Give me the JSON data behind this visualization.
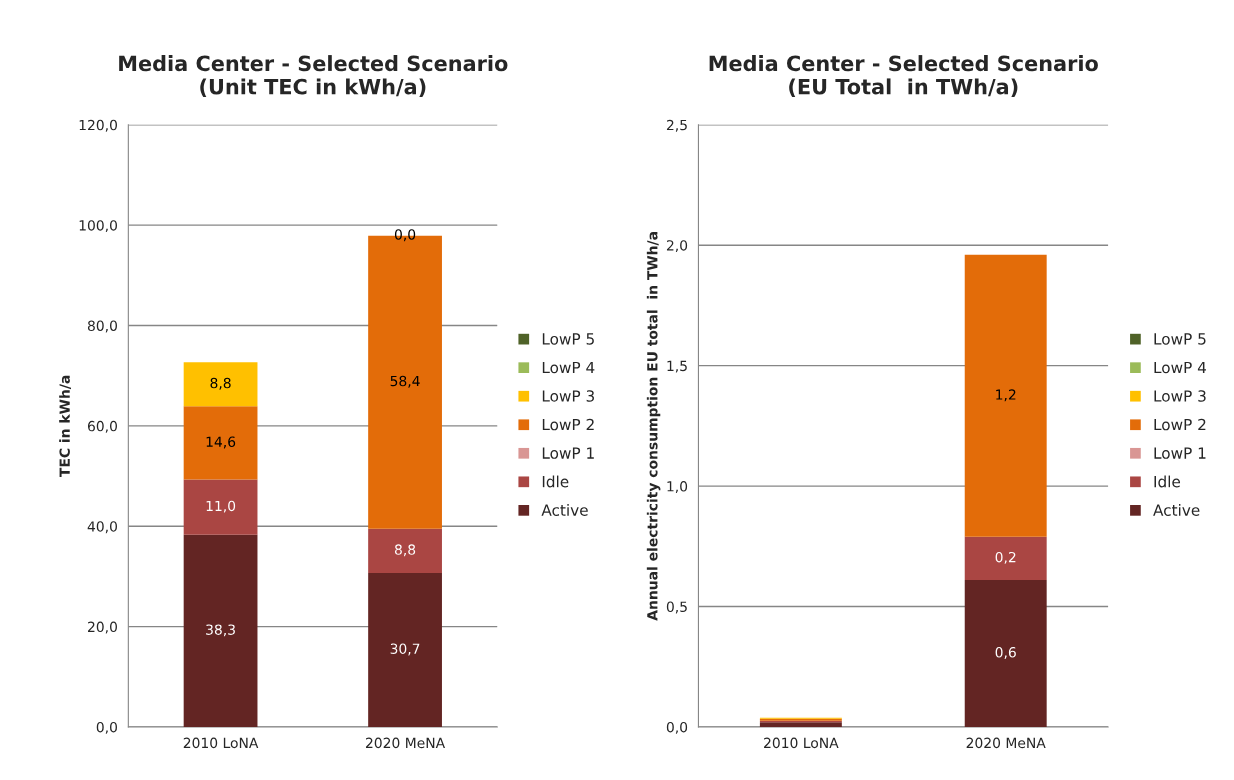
{
  "chart_data": [
    {
      "type": "bar",
      "title": "Media Center - Selected Scenario\n(Unit TEC in kWh/a)",
      "ylabel": "TEC in kWh/a",
      "categories": [
        "2010 LoNA",
        "2020 MeNA"
      ],
      "stacked": true,
      "ylim": [
        0,
        120
      ],
      "yticks": [
        {
          "value": 0,
          "label": "0,0"
        },
        {
          "value": 20,
          "label": "20,0"
        },
        {
          "value": 40,
          "label": "40,0"
        },
        {
          "value": 60,
          "label": "60,0"
        },
        {
          "value": 80,
          "label": "80,0"
        },
        {
          "value": 100,
          "label": "100,0"
        },
        {
          "value": 120,
          "label": "120,0"
        }
      ],
      "grid": "y",
      "legend": "right",
      "series": [
        {
          "name": "Active",
          "color": "#632523",
          "values": [
            38.3,
            30.7
          ],
          "value_labels": [
            "38,3",
            "30,7"
          ]
        },
        {
          "name": "Idle",
          "color": "#aa4643",
          "values": [
            11.0,
            8.8
          ],
          "value_labels": [
            "11,0",
            "8,8"
          ]
        },
        {
          "name": "LowP 1",
          "color": "#d99694",
          "values": [
            0,
            0
          ],
          "value_labels": [
            null,
            null
          ]
        },
        {
          "name": "LowP 2",
          "color": "#e36c09",
          "values": [
            14.6,
            58.4
          ],
          "value_labels": [
            "14,6",
            "58,4"
          ]
        },
        {
          "name": "LowP 3",
          "color": "#ffc000",
          "values": [
            8.8,
            0.0
          ],
          "value_labels": [
            "8,8",
            "0,0"
          ]
        },
        {
          "name": "LowP 4",
          "color": "#9bbb59",
          "values": [
            0,
            0
          ],
          "value_labels": [
            null,
            null
          ]
        },
        {
          "name": "LowP 5",
          "color": "#4f6228",
          "values": [
            0,
            0
          ],
          "value_labels": [
            null,
            null
          ]
        }
      ]
    },
    {
      "type": "bar",
      "title": "Media Center - Selected Scenario\n(EU Total  in TWh/a)",
      "ylabel": "Annual electricity consumption EU total  in TWh/a",
      "categories": [
        "2010 LoNA",
        "2020 MeNA"
      ],
      "stacked": true,
      "ylim": [
        0,
        2.5
      ],
      "yticks": [
        {
          "value": 0,
          "label": "0,0"
        },
        {
          "value": 0.5,
          "label": "0,5"
        },
        {
          "value": 1.0,
          "label": "1,0"
        },
        {
          "value": 1.5,
          "label": "1,5"
        },
        {
          "value": 2.0,
          "label": "2,0"
        },
        {
          "value": 2.5,
          "label": "2,5"
        }
      ],
      "grid": "y",
      "legend": "right",
      "series": [
        {
          "name": "Active",
          "color": "#632523",
          "values": [
            0.02,
            0.61
          ],
          "value_labels": [
            null,
            "0,6"
          ]
        },
        {
          "name": "Idle",
          "color": "#aa4643",
          "values": [
            0.006,
            0.18
          ],
          "value_labels": [
            null,
            "0,2"
          ]
        },
        {
          "name": "LowP 1",
          "color": "#d99694",
          "values": [
            0,
            0
          ],
          "value_labels": [
            null,
            null
          ]
        },
        {
          "name": "LowP 2",
          "color": "#e36c09",
          "values": [
            0.008,
            1.17
          ],
          "value_labels": [
            null,
            "1,2"
          ]
        },
        {
          "name": "LowP 3",
          "color": "#ffc000",
          "values": [
            0.004,
            0
          ],
          "value_labels": [
            null,
            null
          ]
        },
        {
          "name": "LowP 4",
          "color": "#9bbb59",
          "values": [
            0,
            0
          ],
          "value_labels": [
            null,
            null
          ]
        },
        {
          "name": "LowP 5",
          "color": "#4f6228",
          "values": [
            0,
            0
          ],
          "value_labels": [
            null,
            null
          ]
        }
      ]
    }
  ]
}
